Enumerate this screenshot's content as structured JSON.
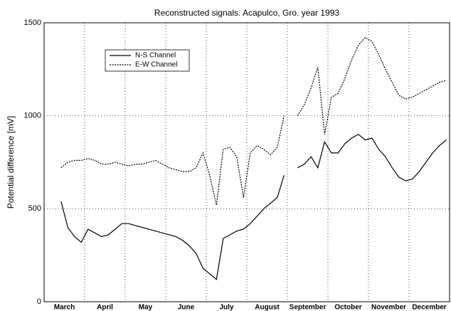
{
  "chart_data": {
    "type": "line",
    "title": "Reconstructed signals. Acapulco, Gro. year 1993",
    "y_label": "Potential difference [mV]",
    "categories": [
      null,
      null,
      "March",
      null,
      null,
      null,
      null,
      null,
      "April",
      null,
      null,
      null,
      null,
      null,
      "May",
      null,
      null,
      null,
      null,
      null,
      "June",
      null,
      null,
      null,
      null,
      null,
      "July",
      null,
      null,
      null,
      null,
      null,
      "August",
      null,
      null,
      null,
      null,
      null,
      "September",
      null,
      null,
      null,
      null,
      null,
      "October",
      null,
      null,
      null,
      null,
      null,
      "November",
      null,
      null,
      null,
      null,
      null,
      "December",
      null,
      null,
      null
    ],
    "series": [
      {
        "name": "N-S  Channel",
        "color": "#000000",
        "dash": false,
        "values": [
          null,
          null,
          540,
          400,
          350,
          320,
          390,
          370,
          350,
          360,
          390,
          420,
          420,
          410,
          400,
          390,
          380,
          370,
          360,
          350,
          330,
          300,
          260,
          180,
          150,
          120,
          340,
          360,
          380,
          390,
          420,
          460,
          500,
          530,
          560,
          680,
          null,
          720,
          740,
          780,
          720,
          860,
          800,
          800,
          850,
          880,
          900,
          870,
          880,
          820,
          780,
          720,
          670,
          650,
          660,
          700,
          750,
          800,
          840,
          870
        ]
      },
      {
        "name": "E-W  Channel",
        "color": "#000000",
        "dash": true,
        "values": [
          null,
          null,
          720,
          750,
          760,
          760,
          770,
          760,
          740,
          740,
          750,
          740,
          730,
          740,
          740,
          750,
          760,
          740,
          720,
          710,
          700,
          700,
          720,
          800,
          680,
          520,
          820,
          830,
          780,
          560,
          800,
          840,
          820,
          790,
          830,
          1000,
          null,
          1000,
          1060,
          1150,
          1260,
          900,
          1100,
          1120,
          1200,
          1300,
          1380,
          1420,
          1400,
          1330,
          1250,
          1180,
          1110,
          1090,
          1100,
          1120,
          1140,
          1160,
          1180,
          1190
        ]
      }
    ],
    "ylim": [
      0,
      1500
    ],
    "yticks": [
      0,
      500,
      1000,
      1500
    ],
    "grid": true,
    "legend": "upper left"
  }
}
